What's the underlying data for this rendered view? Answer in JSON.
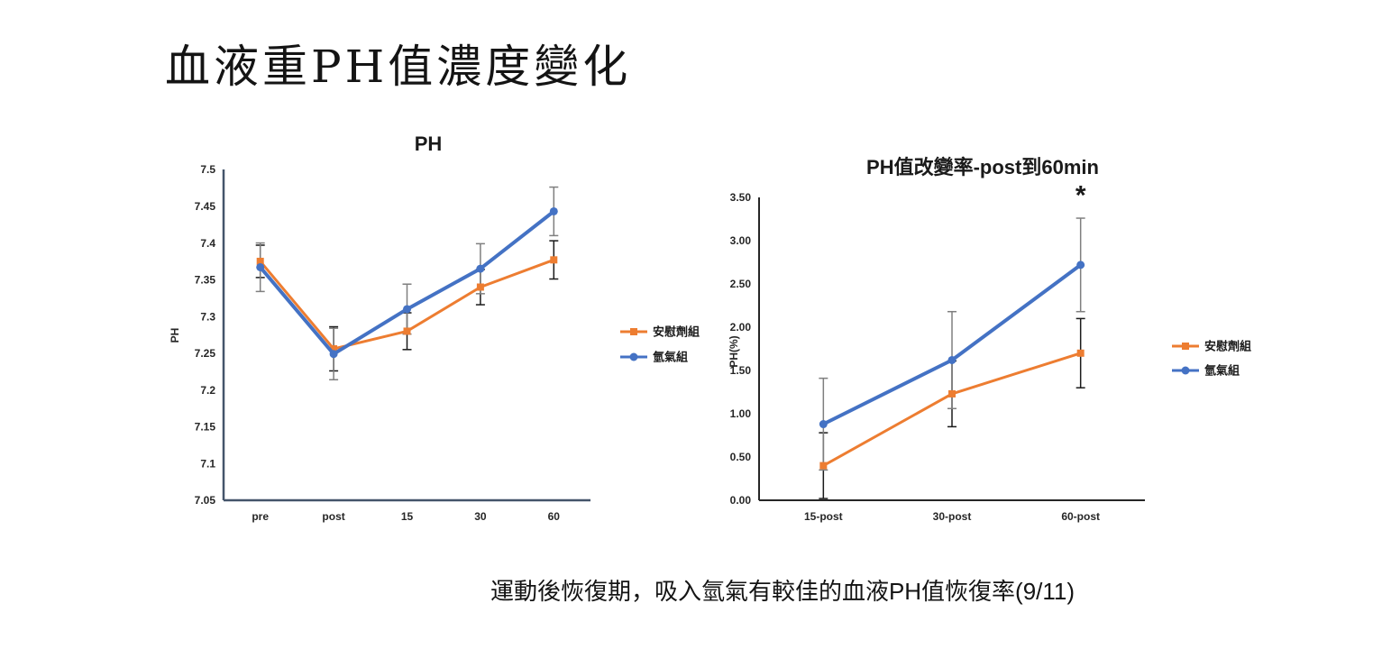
{
  "slide": {
    "title": "血液重PH值濃度變化",
    "caption": "運動後恢復期，吸入氫氣有較佳的血液PH值恢復率(9/11)"
  },
  "chart_data": [
    {
      "type": "line",
      "title": "PH",
      "ylabel": "PH",
      "xlabel": "",
      "categories": [
        "pre",
        "post",
        "15",
        "30",
        "60"
      ],
      "ylim": [
        7.05,
        7.5
      ],
      "ytick_step": 0.05,
      "ytick_labels": [
        "7.05",
        "7.1",
        "7.15",
        "7.2",
        "7.25",
        "7.3",
        "7.35",
        "7.4",
        "7.45",
        "7.5"
      ],
      "grid": false,
      "legend_position": "right",
      "axis_color": "#44546A",
      "axis_width": 2.5,
      "error_bars": true,
      "series": [
        {
          "name": "安慰劑組",
          "color": "#ED7D31",
          "marker": "square",
          "line_width": 3,
          "err_color": "#1a1a1a",
          "values": [
            7.375,
            7.256,
            7.28,
            7.34,
            7.377
          ],
          "errors": [
            0.022,
            0.03,
            0.025,
            0.024,
            0.026
          ]
        },
        {
          "name": "氫氣組",
          "color": "#4472C4",
          "marker": "circle",
          "line_width": 4,
          "err_color": "#7f7f7f",
          "values": [
            7.367,
            7.249,
            7.31,
            7.365,
            7.443
          ],
          "errors": [
            0.033,
            0.035,
            0.034,
            0.034,
            0.033
          ]
        }
      ]
    },
    {
      "type": "line",
      "title": "PH值改變率-post到60min",
      "ylabel": "PH(%)",
      "xlabel": "",
      "categories": [
        "15-post",
        "30-post",
        "60-post"
      ],
      "ylim": [
        0,
        3.5
      ],
      "ytick_step": 0.5,
      "ytick_labels": [
        "0.00",
        "0.50",
        "1.00",
        "1.50",
        "2.00",
        "2.50",
        "3.00",
        "3.50"
      ],
      "grid": false,
      "legend_position": "right",
      "axis_color": "#262626",
      "axis_width": 2,
      "error_bars": true,
      "annotation": {
        "text": "*",
        "category": "60-post",
        "value": 3.42
      },
      "series": [
        {
          "name": "安慰劑組",
          "color": "#ED7D31",
          "marker": "square",
          "line_width": 3,
          "err_color": "#1a1a1a",
          "values": [
            0.4,
            1.23,
            1.7
          ],
          "errors": [
            0.38,
            0.38,
            0.4
          ]
        },
        {
          "name": "氫氣組",
          "color": "#4472C4",
          "marker": "circle",
          "line_width": 4,
          "err_color": "#7f7f7f",
          "values": [
            0.88,
            1.62,
            2.72
          ],
          "errors": [
            0.53,
            0.56,
            0.54
          ]
        }
      ]
    }
  ]
}
